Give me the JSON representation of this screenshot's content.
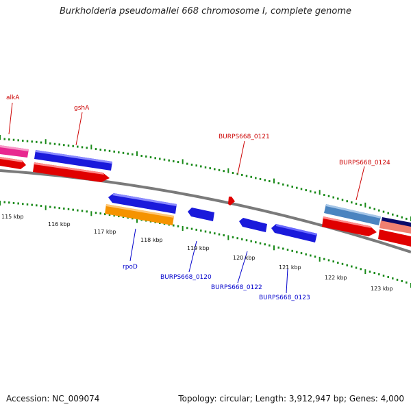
{
  "header": {
    "title": "Burkholderia pseudomallei 668 chromosome I, complete genome"
  },
  "footer": {
    "accession": "Accession: NC_009074",
    "topology": "Topology: circular; Length: 3,912,947 bp; Genes: 4,000"
  },
  "colors": {
    "backbone": "#7a7a7a",
    "tick": "#1a8a1a",
    "forward_label": "#cc0000",
    "reverse_label": "#0000cc"
  },
  "kbp_labels": [
    "115 kbp",
    "116 kbp",
    "117 kbp",
    "118 kbp",
    "119 kbp",
    "120 kbp",
    "121 kbp",
    "122 kbp",
    "123 kbp"
  ],
  "gene_labels": {
    "alkA": "alkA",
    "gshA": "gshA",
    "b0121": "BURPS668_0121",
    "b0124": "BURPS668_0124",
    "rpoD": "rpoD",
    "b0120": "BURPS668_0120",
    "b0122": "BURPS668_0122",
    "b0123": "BURPS668_0123"
  }
}
